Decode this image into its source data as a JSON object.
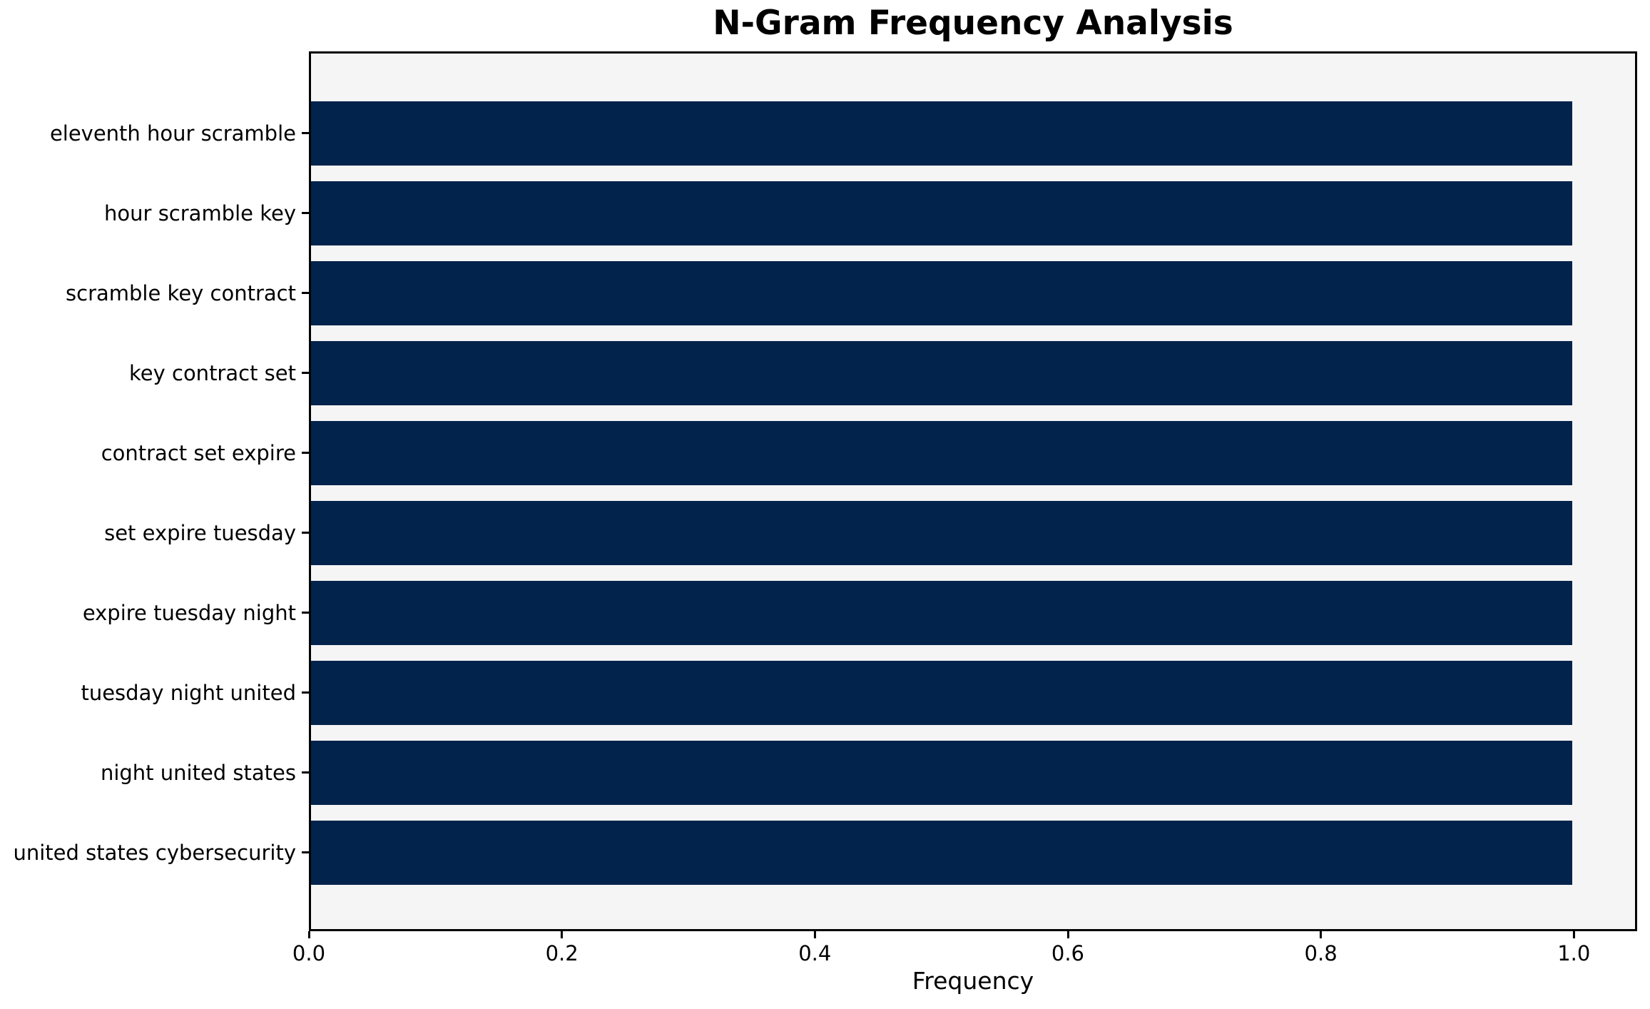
{
  "title": "N-Gram Frequency Analysis",
  "chart_data": {
    "type": "bar",
    "orientation": "horizontal",
    "title": "N-Gram Frequency Analysis",
    "xlabel": "Frequency",
    "ylabel": "",
    "categories": [
      "eleventh hour scramble",
      "hour scramble key",
      "scramble key contract",
      "key contract set",
      "contract set expire",
      "set expire tuesday",
      "expire tuesday night",
      "tuesday night united",
      "night united states",
      "united states cybersecurity"
    ],
    "values": [
      1.0,
      1.0,
      1.0,
      1.0,
      1.0,
      1.0,
      1.0,
      1.0,
      1.0,
      1.0
    ],
    "xlim": [
      0,
      1.05
    ],
    "xticks": [
      0.0,
      0.2,
      0.4,
      0.6,
      0.8,
      1.0
    ],
    "xtick_labels": [
      "0.0",
      "0.2",
      "0.4",
      "0.6",
      "0.8",
      "1.0"
    ],
    "grid": false,
    "legend": null,
    "bar_color": "#02234c",
    "plot_bg": "#f5f5f5",
    "figure_bg": "#ffffff",
    "spine_color": "#000000"
  }
}
